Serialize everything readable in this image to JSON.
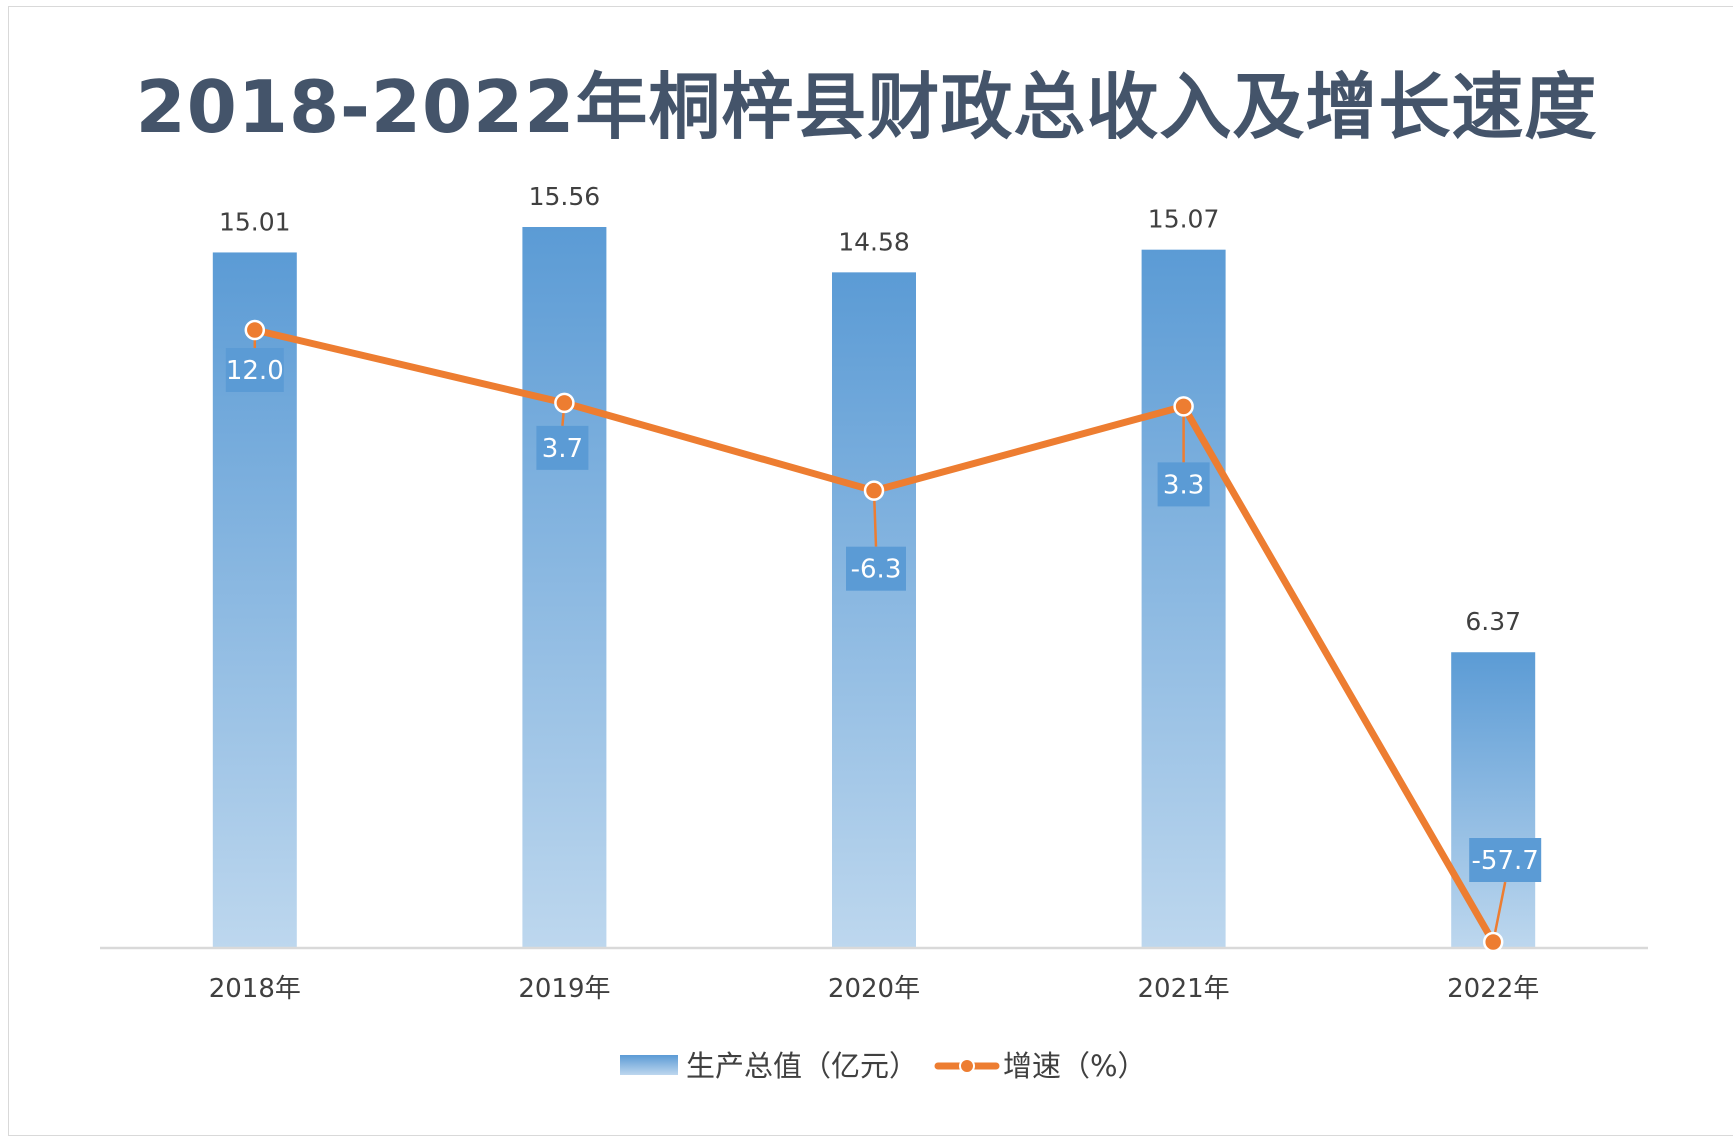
{
  "chart_data": {
    "type": "bar+line",
    "title": "2018-2022年桐梓县财政总收入及增长速度",
    "categories": [
      "2018年",
      "2019年",
      "2020年",
      "2021年",
      "2022年"
    ],
    "series": [
      {
        "name": "生产总值（亿元）",
        "type": "bar",
        "axis": "primary",
        "values": [
          15.01,
          15.56,
          14.58,
          15.07,
          6.37
        ],
        "labels": [
          "15.01",
          "15.56",
          "14.58",
          "15.07",
          "6.37"
        ]
      },
      {
        "name": "增速（%）",
        "type": "line",
        "axis": "secondary",
        "values": [
          12.0,
          3.7,
          -6.3,
          3.3,
          -57.7
        ],
        "labels": [
          "12.0",
          "3.7",
          "-6.3",
          "3.3",
          "-57.7"
        ]
      }
    ],
    "ylim": [
      0,
      16
    ],
    "y2lim": [
      -60,
      25
    ],
    "grid": false,
    "legend": "bottom-center",
    "colors": {
      "bar_top": "#5b9bd5",
      "bar_bottom": "#bdd7ee",
      "line": "#ed7d31",
      "rate_label_bg": "#5b9bd5",
      "axis": "#d9d9d9",
      "title": "#44546a"
    }
  }
}
